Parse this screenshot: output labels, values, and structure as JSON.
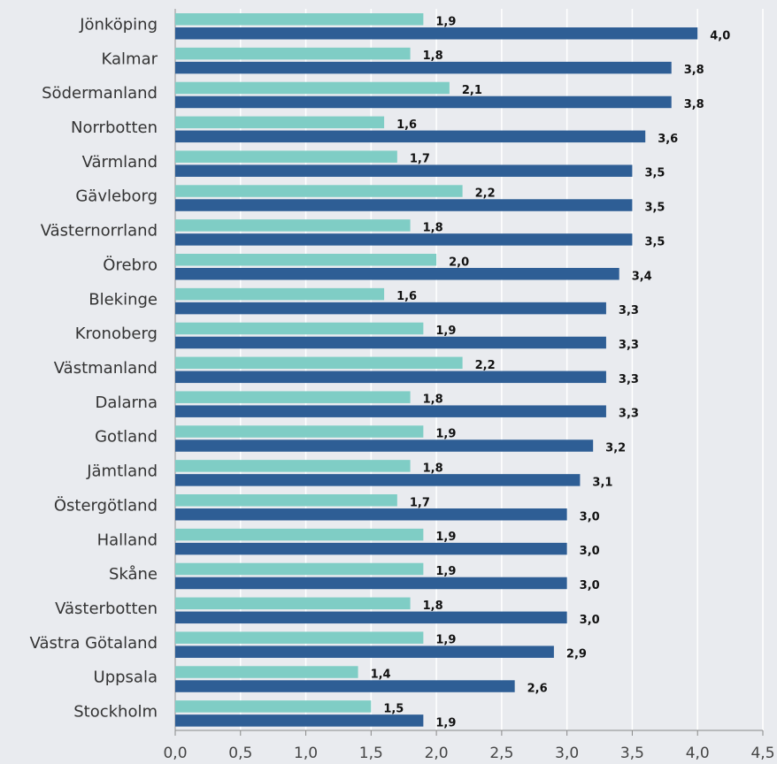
{
  "chart_data": {
    "type": "barh",
    "categories": [
      "Jönköping",
      "Kalmar",
      "Södermanland",
      "Norrbotten",
      "Värmland",
      "Gävleborg",
      "Västernorrland",
      "Örebro",
      "Blekinge",
      "Kronoberg",
      "Västmanland",
      "Dalarna",
      "Gotland",
      "Jämtland",
      "Östergötland",
      "Halland",
      "Skåne",
      "Västerbotten",
      "Västra Götaland",
      "Uppsala",
      "Stockholm"
    ],
    "series": [
      {
        "color": "#7fcdc5",
        "values": [
          1.9,
          1.8,
          2.1,
          1.6,
          1.7,
          2.2,
          1.8,
          2.0,
          1.6,
          1.9,
          2.2,
          1.8,
          1.9,
          1.8,
          1.7,
          1.9,
          1.9,
          1.8,
          1.9,
          1.4,
          1.5
        ],
        "value_labels": [
          "1,9",
          "1,8",
          "2,1",
          "1,6",
          "1,7",
          "2,2",
          "1,8",
          "2,0",
          "1,6",
          "1,9",
          "2,2",
          "1,8",
          "1,9",
          "1,8",
          "1,7",
          "1,9",
          "1,9",
          "1,8",
          "1,9",
          "1,4",
          "1,5"
        ]
      },
      {
        "color": "#2e5e95",
        "values": [
          4.0,
          3.8,
          3.8,
          3.6,
          3.5,
          3.5,
          3.5,
          3.4,
          3.3,
          3.3,
          3.3,
          3.3,
          3.2,
          3.1,
          3.0,
          3.0,
          3.0,
          3.0,
          2.9,
          2.6,
          1.9
        ],
        "value_labels": [
          "4,0",
          "3,8",
          "3,8",
          "3,6",
          "3,5",
          "3,5",
          "3,5",
          "3,4",
          "3,3",
          "3,3",
          "3,3",
          "3,3",
          "3,2",
          "3,1",
          "3,0",
          "3,0",
          "3,0",
          "3,0",
          "2,9",
          "2,6",
          "1,9"
        ]
      }
    ],
    "xlim": [
      0,
      4.5
    ],
    "xticks": [
      {
        "value": 0,
        "label": "0,0"
      },
      {
        "value": 0.5,
        "label": "0,5"
      },
      {
        "value": 1,
        "label": "1,0"
      },
      {
        "value": 1.5,
        "label": "1,5"
      },
      {
        "value": 2,
        "label": "2,0"
      },
      {
        "value": 2.5,
        "label": "2,5"
      },
      {
        "value": 3,
        "label": "3,0"
      },
      {
        "value": 3.5,
        "label": "3,5"
      },
      {
        "value": 4,
        "label": "4,0"
      },
      {
        "value": 4.5,
        "label": "4,5"
      }
    ],
    "grid": true
  }
}
